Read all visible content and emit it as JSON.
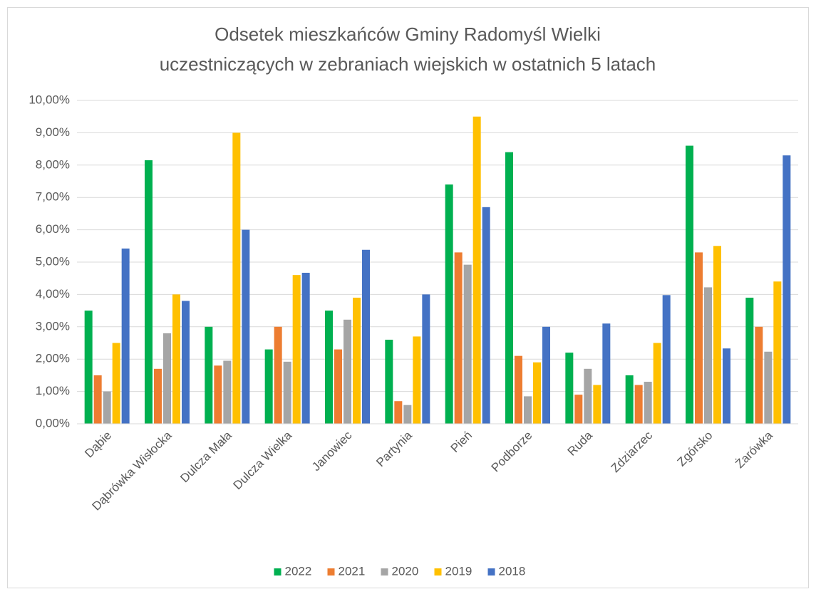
{
  "chart_data": {
    "type": "bar",
    "title": [
      "Odsetek mieszkańców Gminy Radomyśl Wielki",
      "uczestniczących w zebraniach wiejskich w ostatnich 5 latach"
    ],
    "categories": [
      "Dąbie",
      "Dąbrówka Wisłocka",
      "Dulcza Mała",
      "Dulcza Wielka",
      "Janowiec",
      "Partynia",
      "Pień",
      "Podborze",
      "Ruda",
      "Zdziarzec",
      "Zgórsko",
      "Żarówka"
    ],
    "series": [
      {
        "name": "2022",
        "color": "#00b050",
        "values": [
          3.5,
          8.15,
          3.0,
          2.3,
          3.5,
          2.6,
          7.4,
          8.4,
          2.2,
          1.5,
          8.6,
          3.9
        ]
      },
      {
        "name": "2021",
        "color": "#ed7d31",
        "values": [
          1.5,
          1.7,
          1.8,
          3.0,
          2.3,
          0.7,
          5.3,
          2.1,
          0.9,
          1.2,
          5.3,
          3.0
        ]
      },
      {
        "name": "2020",
        "color": "#a5a5a5",
        "values": [
          1.0,
          2.8,
          1.95,
          1.92,
          3.22,
          0.58,
          4.92,
          0.85,
          1.7,
          1.3,
          4.22,
          2.23
        ]
      },
      {
        "name": "2019",
        "color": "#ffc000",
        "values": [
          2.5,
          4.0,
          9.0,
          4.6,
          3.9,
          2.7,
          9.5,
          1.9,
          1.2,
          2.5,
          5.5,
          4.4
        ]
      },
      {
        "name": "2018",
        "color": "#4472c4",
        "values": [
          5.42,
          3.8,
          6.0,
          4.67,
          5.38,
          4.0,
          6.7,
          3.0,
          3.1,
          3.98,
          2.33,
          8.3
        ]
      }
    ],
    "ylim": [
      0,
      10
    ],
    "yticks": [
      {
        "value": 0,
        "label": "0,00%"
      },
      {
        "value": 1,
        "label": "1,00%"
      },
      {
        "value": 2,
        "label": "2,00%"
      },
      {
        "value": 3,
        "label": "3,00%"
      },
      {
        "value": 4,
        "label": "4,00%"
      },
      {
        "value": 5,
        "label": "5,00%"
      },
      {
        "value": 6,
        "label": "6,00%"
      },
      {
        "value": 7,
        "label": "7,00%"
      },
      {
        "value": 8,
        "label": "8,00%"
      },
      {
        "value": 9,
        "label": "9,00%"
      },
      {
        "value": 10,
        "label": "10,00%"
      }
    ],
    "grid": true,
    "legend": "bottom"
  }
}
